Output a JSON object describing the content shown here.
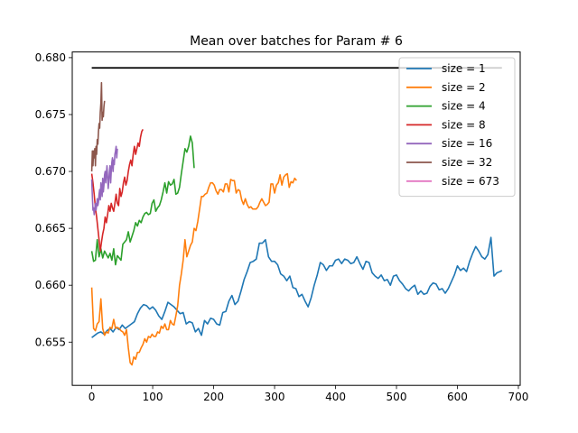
{
  "chart_data": {
    "type": "line",
    "title": "Mean over batches for Param # 6",
    "xlabel": "",
    "ylabel": "",
    "xlim": [
      -32,
      703
    ],
    "ylim": [
      0.6512,
      0.6805
    ],
    "xticks": [
      0,
      100,
      200,
      300,
      400,
      500,
      600,
      700
    ],
    "yticks": [
      0.655,
      0.66,
      0.665,
      0.67,
      0.675,
      0.68
    ],
    "ytick_labels": [
      "0.655",
      "0.660",
      "0.665",
      "0.670",
      "0.675",
      "0.680"
    ],
    "grid": false,
    "legend_position": "top-right",
    "reference_line": {
      "y": 0.6791,
      "x_start": 0,
      "x_end": 673,
      "color": "#000000"
    },
    "series": [
      {
        "name": "size = 1",
        "color": "#1f77b4",
        "x": [
          0,
          5,
          10,
          15,
          20,
          25,
          30,
          35,
          40,
          45,
          50,
          55,
          60,
          65,
          70,
          75,
          80,
          85,
          90,
          95,
          100,
          105,
          110,
          115,
          120,
          125,
          130,
          135,
          140,
          145,
          150,
          155,
          160,
          165,
          170,
          175,
          180,
          185,
          190,
          195,
          200,
          205,
          210,
          215,
          220,
          225,
          230,
          235,
          240,
          245,
          250,
          255,
          260,
          265,
          270,
          275,
          280,
          285,
          290,
          295,
          300,
          305,
          310,
          315,
          320,
          325,
          330,
          335,
          340,
          345,
          350,
          355,
          360,
          365,
          370,
          375,
          380,
          385,
          390,
          395,
          400,
          405,
          410,
          415,
          420,
          425,
          430,
          435,
          440,
          445,
          450,
          455,
          460,
          465,
          470,
          475,
          480,
          485,
          490,
          495,
          500,
          505,
          510,
          515,
          520,
          525,
          530,
          535,
          540,
          545,
          550,
          555,
          560,
          565,
          570,
          575,
          580,
          585,
          590,
          595,
          600,
          605,
          610,
          615,
          620,
          625,
          630,
          635,
          640,
          645,
          650,
          655,
          660,
          665,
          670,
          673
        ],
        "y": [
          0.6554,
          0.6556,
          0.6558,
          0.6559,
          0.6557,
          0.656,
          0.6562,
          0.6559,
          0.6563,
          0.6561,
          0.6565,
          0.6562,
          0.6564,
          0.6566,
          0.6568,
          0.6575,
          0.658,
          0.6583,
          0.6582,
          0.6579,
          0.6581,
          0.6578,
          0.6573,
          0.657,
          0.6577,
          0.6585,
          0.6583,
          0.6581,
          0.6578,
          0.6575,
          0.6576,
          0.6566,
          0.6568,
          0.6567,
          0.6559,
          0.6562,
          0.6556,
          0.6569,
          0.6566,
          0.6571,
          0.657,
          0.6566,
          0.6565,
          0.6576,
          0.6577,
          0.6586,
          0.6591,
          0.6583,
          0.6586,
          0.6595,
          0.6605,
          0.6612,
          0.662,
          0.6621,
          0.6623,
          0.6637,
          0.6637,
          0.664,
          0.6625,
          0.6621,
          0.6621,
          0.6618,
          0.661,
          0.6608,
          0.6604,
          0.6608,
          0.6598,
          0.6597,
          0.659,
          0.6592,
          0.6586,
          0.6581,
          0.6589,
          0.66,
          0.6609,
          0.662,
          0.6618,
          0.6613,
          0.6617,
          0.6617,
          0.6622,
          0.6623,
          0.6619,
          0.6623,
          0.6622,
          0.6619,
          0.662,
          0.6625,
          0.6619,
          0.6614,
          0.6621,
          0.662,
          0.6611,
          0.6608,
          0.6606,
          0.6609,
          0.6604,
          0.6605,
          0.66,
          0.6608,
          0.6609,
          0.6604,
          0.6601,
          0.6597,
          0.6595,
          0.6598,
          0.66,
          0.6592,
          0.6595,
          0.6592,
          0.6593,
          0.6599,
          0.6602,
          0.6601,
          0.6596,
          0.6597,
          0.6593,
          0.6597,
          0.6603,
          0.6609,
          0.6617,
          0.6613,
          0.6615,
          0.6612,
          0.6621,
          0.6628,
          0.6634,
          0.663,
          0.6625,
          0.6623,
          0.6627,
          0.6642,
          0.6608,
          0.6611,
          0.6612,
          0.6613
        ]
      },
      {
        "name": "size = 2",
        "color": "#ff7f0e",
        "x": [
          0,
          3,
          6,
          9,
          12,
          15,
          18,
          21,
          24,
          27,
          30,
          33,
          36,
          39,
          42,
          45,
          48,
          51,
          54,
          57,
          60,
          63,
          66,
          69,
          72,
          75,
          78,
          81,
          84,
          87,
          90,
          93,
          96,
          99,
          102,
          105,
          108,
          111,
          114,
          117,
          120,
          123,
          126,
          129,
          132,
          135,
          138,
          141,
          144,
          147,
          150,
          153,
          156,
          159,
          162,
          165,
          168,
          171,
          174,
          177,
          180,
          183,
          186,
          189,
          192,
          195,
          198,
          201,
          204,
          207,
          210,
          213,
          216,
          219,
          222,
          225,
          228,
          231,
          234,
          237,
          240,
          243,
          246,
          249,
          252,
          255,
          258,
          261,
          264,
          267,
          270,
          273,
          276,
          279,
          282,
          285,
          288,
          291,
          294,
          297,
          300,
          303,
          306,
          309,
          312,
          315,
          318,
          321,
          324,
          327,
          330,
          333,
          336
        ],
        "y": [
          0.6598,
          0.6562,
          0.656,
          0.6566,
          0.6568,
          0.6588,
          0.6562,
          0.6556,
          0.6559,
          0.6558,
          0.6563,
          0.6562,
          0.657,
          0.6562,
          0.6563,
          0.6562,
          0.656,
          0.6559,
          0.6556,
          0.6561,
          0.6545,
          0.6532,
          0.653,
          0.6537,
          0.6535,
          0.6541,
          0.6541,
          0.6545,
          0.6548,
          0.6553,
          0.655,
          0.6555,
          0.6554,
          0.6557,
          0.6555,
          0.6555,
          0.6559,
          0.6558,
          0.6564,
          0.6562,
          0.6566,
          0.6561,
          0.6561,
          0.6569,
          0.6566,
          0.6565,
          0.6573,
          0.6582,
          0.66,
          0.661,
          0.6622,
          0.664,
          0.6625,
          0.663,
          0.6635,
          0.6638,
          0.665,
          0.6648,
          0.6656,
          0.6667,
          0.6678,
          0.6678,
          0.668,
          0.6681,
          0.6686,
          0.669,
          0.669,
          0.6688,
          0.6683,
          0.668,
          0.6684,
          0.6684,
          0.6682,
          0.6689,
          0.6689,
          0.6682,
          0.6693,
          0.6692,
          0.6692,
          0.6681,
          0.6684,
          0.6683,
          0.6675,
          0.6671,
          0.6676,
          0.6671,
          0.6668,
          0.6669,
          0.6667,
          0.6667,
          0.6667,
          0.6669,
          0.6673,
          0.6676,
          0.6673,
          0.667,
          0.6671,
          0.6673,
          0.6689,
          0.6689,
          0.6681,
          0.6688,
          0.669,
          0.6697,
          0.6688,
          0.6695,
          0.6697,
          0.6698,
          0.6686,
          0.6691,
          0.669,
          0.6694,
          0.6692
        ]
      },
      {
        "name": "size = 4",
        "color": "#2ca02c",
        "x": [
          0,
          3,
          6,
          9,
          12,
          15,
          18,
          21,
          24,
          27,
          30,
          33,
          36,
          39,
          42,
          45,
          48,
          51,
          54,
          57,
          60,
          63,
          66,
          69,
          72,
          75,
          78,
          81,
          84,
          87,
          90,
          93,
          96,
          99,
          102,
          105,
          108,
          111,
          114,
          117,
          120,
          123,
          126,
          129,
          132,
          135,
          138,
          141,
          144,
          147,
          150,
          153,
          156,
          159,
          162,
          165,
          168
        ],
        "y": [
          0.663,
          0.6621,
          0.6622,
          0.664,
          0.6625,
          0.6632,
          0.6624,
          0.663,
          0.6627,
          0.6624,
          0.6628,
          0.6622,
          0.6632,
          0.6618,
          0.6626,
          0.6624,
          0.6622,
          0.6636,
          0.6638,
          0.664,
          0.6647,
          0.6638,
          0.6643,
          0.6648,
          0.6655,
          0.6652,
          0.6657,
          0.6655,
          0.666,
          0.6663,
          0.6664,
          0.6662,
          0.6663,
          0.6672,
          0.6675,
          0.6665,
          0.6668,
          0.667,
          0.6675,
          0.6682,
          0.669,
          0.6681,
          0.6691,
          0.6688,
          0.6689,
          0.6693,
          0.668,
          0.6681,
          0.6686,
          0.6698,
          0.6709,
          0.672,
          0.6717,
          0.6722,
          0.6731,
          0.6725,
          0.6703
        ]
      },
      {
        "name": "size = 8",
        "color": "#d62728",
        "x": [
          0,
          2,
          4,
          6,
          8,
          10,
          12,
          14,
          16,
          18,
          20,
          22,
          24,
          26,
          28,
          30,
          32,
          34,
          36,
          38,
          40,
          42,
          44,
          46,
          48,
          50,
          52,
          54,
          56,
          58,
          60,
          62,
          64,
          66,
          68,
          70,
          72,
          74,
          76,
          78,
          80,
          82,
          84
        ],
        "y": [
          0.6698,
          0.669,
          0.668,
          0.6668,
          0.666,
          0.665,
          0.664,
          0.663,
          0.6638,
          0.6645,
          0.665,
          0.666,
          0.6655,
          0.6662,
          0.667,
          0.6665,
          0.6672,
          0.6668,
          0.6665,
          0.6672,
          0.668,
          0.6672,
          0.667,
          0.6685,
          0.6678,
          0.6682,
          0.669,
          0.6695,
          0.6688,
          0.6692,
          0.67,
          0.6706,
          0.671,
          0.6705,
          0.6715,
          0.6722,
          0.6715,
          0.672,
          0.6725,
          0.6722,
          0.673,
          0.6735,
          0.6737
        ]
      },
      {
        "name": "size = 16",
        "color": "#9467bd",
        "x": [
          0,
          1,
          2,
          3,
          4,
          5,
          6,
          7,
          8,
          9,
          10,
          11,
          12,
          13,
          14,
          15,
          16,
          17,
          18,
          19,
          20,
          21,
          22,
          23,
          24,
          25,
          26,
          27,
          28,
          29,
          30,
          31,
          32,
          33,
          34,
          35,
          36,
          37,
          38,
          39,
          40,
          41,
          42
        ],
        "y": [
          0.6693,
          0.6678,
          0.6666,
          0.6668,
          0.6662,
          0.6667,
          0.6672,
          0.6666,
          0.667,
          0.6676,
          0.667,
          0.6673,
          0.668,
          0.6684,
          0.6675,
          0.669,
          0.6685,
          0.6678,
          0.6694,
          0.6682,
          0.6688,
          0.6697,
          0.67,
          0.669,
          0.6698,
          0.6705,
          0.6695,
          0.6685,
          0.6692,
          0.67,
          0.6705,
          0.669,
          0.67,
          0.6708,
          0.6712,
          0.67,
          0.671,
          0.6706,
          0.6715,
          0.6718,
          0.6722,
          0.6712,
          0.672
        ]
      },
      {
        "name": "size = 32",
        "color": "#8c564b",
        "x": [
          0,
          1,
          2,
          3,
          4,
          5,
          6,
          7,
          8,
          9,
          10,
          11,
          12,
          13,
          14,
          15,
          16,
          17,
          18,
          19,
          20,
          21
        ],
        "y": [
          0.67,
          0.6718,
          0.6705,
          0.6718,
          0.6712,
          0.672,
          0.6705,
          0.6722,
          0.6715,
          0.6728,
          0.6724,
          0.6735,
          0.6742,
          0.6738,
          0.6752,
          0.676,
          0.6778,
          0.6745,
          0.6752,
          0.6748,
          0.6757,
          0.6762
        ]
      },
      {
        "name": "size = 673",
        "color": "#e377c2",
        "x": [
          0
        ],
        "y": [
          0.6795
        ]
      }
    ]
  }
}
